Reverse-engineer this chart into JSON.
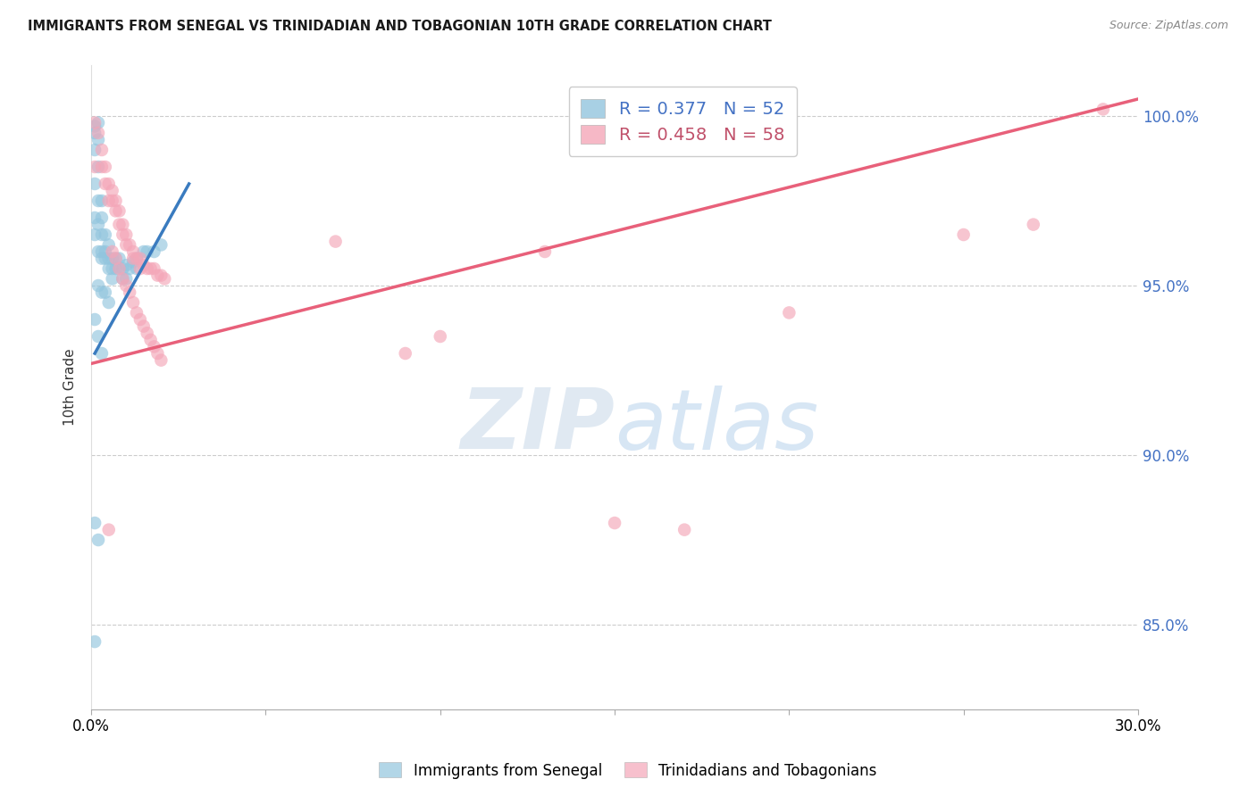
{
  "title": "IMMIGRANTS FROM SENEGAL VS TRINIDADIAN AND TOBAGONIAN 10TH GRADE CORRELATION CHART",
  "source": "Source: ZipAtlas.com",
  "ylabel": "10th Grade",
  "yaxis_labels": [
    "100.0%",
    "95.0%",
    "90.0%",
    "85.0%"
  ],
  "yaxis_values": [
    1.0,
    0.95,
    0.9,
    0.85
  ],
  "xlim": [
    0.0,
    0.3
  ],
  "ylim": [
    0.825,
    1.015
  ],
  "legend_blue_r": "0.377",
  "legend_blue_n": "52",
  "legend_pink_r": "0.458",
  "legend_pink_n": "58",
  "legend_label_blue": "Immigrants from Senegal",
  "legend_label_pink": "Trinidadians and Tobagonians",
  "blue_color": "#92c5de",
  "pink_color": "#f4a6b8",
  "blue_line_color": "#3a7bbf",
  "pink_line_color": "#e8607a",
  "watermark_zip": "ZIP",
  "watermark_atlas": "atlas",
  "blue_line_x": [
    0.001,
    0.028
  ],
  "blue_line_y": [
    0.93,
    0.98
  ],
  "pink_line_x": [
    0.0,
    0.3
  ],
  "pink_line_y": [
    0.927,
    1.005
  ],
  "blue_points": [
    [
      0.001,
      0.997
    ],
    [
      0.001,
      0.995
    ],
    [
      0.002,
      0.998
    ],
    [
      0.002,
      0.993
    ],
    [
      0.001,
      0.99
    ],
    [
      0.002,
      0.985
    ],
    [
      0.001,
      0.98
    ],
    [
      0.002,
      0.975
    ],
    [
      0.001,
      0.97
    ],
    [
      0.002,
      0.968
    ],
    [
      0.001,
      0.965
    ],
    [
      0.002,
      0.96
    ],
    [
      0.003,
      0.975
    ],
    [
      0.003,
      0.97
    ],
    [
      0.003,
      0.965
    ],
    [
      0.003,
      0.96
    ],
    [
      0.003,
      0.958
    ],
    [
      0.004,
      0.965
    ],
    [
      0.004,
      0.96
    ],
    [
      0.004,
      0.958
    ],
    [
      0.005,
      0.962
    ],
    [
      0.005,
      0.958
    ],
    [
      0.005,
      0.955
    ],
    [
      0.006,
      0.958
    ],
    [
      0.006,
      0.955
    ],
    [
      0.006,
      0.952
    ],
    [
      0.007,
      0.958
    ],
    [
      0.007,
      0.955
    ],
    [
      0.008,
      0.958
    ],
    [
      0.008,
      0.955
    ],
    [
      0.009,
      0.955
    ],
    [
      0.009,
      0.952
    ],
    [
      0.01,
      0.956
    ],
    [
      0.01,
      0.952
    ],
    [
      0.011,
      0.955
    ],
    [
      0.012,
      0.957
    ],
    [
      0.013,
      0.958
    ],
    [
      0.013,
      0.955
    ],
    [
      0.015,
      0.96
    ],
    [
      0.016,
      0.96
    ],
    [
      0.018,
      0.96
    ],
    [
      0.02,
      0.962
    ],
    [
      0.002,
      0.95
    ],
    [
      0.003,
      0.948
    ],
    [
      0.004,
      0.948
    ],
    [
      0.005,
      0.945
    ],
    [
      0.001,
      0.94
    ],
    [
      0.002,
      0.935
    ],
    [
      0.003,
      0.93
    ],
    [
      0.001,
      0.88
    ],
    [
      0.002,
      0.875
    ],
    [
      0.001,
      0.845
    ]
  ],
  "pink_points": [
    [
      0.001,
      0.998
    ],
    [
      0.002,
      0.995
    ],
    [
      0.001,
      0.985
    ],
    [
      0.003,
      0.99
    ],
    [
      0.003,
      0.985
    ],
    [
      0.004,
      0.985
    ],
    [
      0.004,
      0.98
    ],
    [
      0.005,
      0.98
    ],
    [
      0.005,
      0.975
    ],
    [
      0.006,
      0.978
    ],
    [
      0.006,
      0.975
    ],
    [
      0.007,
      0.975
    ],
    [
      0.007,
      0.972
    ],
    [
      0.008,
      0.972
    ],
    [
      0.008,
      0.968
    ],
    [
      0.009,
      0.968
    ],
    [
      0.009,
      0.965
    ],
    [
      0.01,
      0.965
    ],
    [
      0.01,
      0.962
    ],
    [
      0.011,
      0.962
    ],
    [
      0.012,
      0.96
    ],
    [
      0.012,
      0.958
    ],
    [
      0.013,
      0.958
    ],
    [
      0.014,
      0.958
    ],
    [
      0.014,
      0.955
    ],
    [
      0.015,
      0.956
    ],
    [
      0.016,
      0.955
    ],
    [
      0.017,
      0.955
    ],
    [
      0.018,
      0.955
    ],
    [
      0.019,
      0.953
    ],
    [
      0.02,
      0.953
    ],
    [
      0.021,
      0.952
    ],
    [
      0.006,
      0.96
    ],
    [
      0.007,
      0.958
    ],
    [
      0.008,
      0.955
    ],
    [
      0.009,
      0.952
    ],
    [
      0.01,
      0.95
    ],
    [
      0.011,
      0.948
    ],
    [
      0.012,
      0.945
    ],
    [
      0.013,
      0.942
    ],
    [
      0.014,
      0.94
    ],
    [
      0.015,
      0.938
    ],
    [
      0.016,
      0.936
    ],
    [
      0.017,
      0.934
    ],
    [
      0.018,
      0.932
    ],
    [
      0.019,
      0.93
    ],
    [
      0.02,
      0.928
    ],
    [
      0.07,
      0.963
    ],
    [
      0.09,
      0.93
    ],
    [
      0.1,
      0.935
    ],
    [
      0.13,
      0.96
    ],
    [
      0.15,
      0.88
    ],
    [
      0.17,
      0.878
    ],
    [
      0.2,
      0.942
    ],
    [
      0.25,
      0.965
    ],
    [
      0.27,
      0.968
    ],
    [
      0.29,
      1.002
    ],
    [
      0.005,
      0.878
    ]
  ]
}
